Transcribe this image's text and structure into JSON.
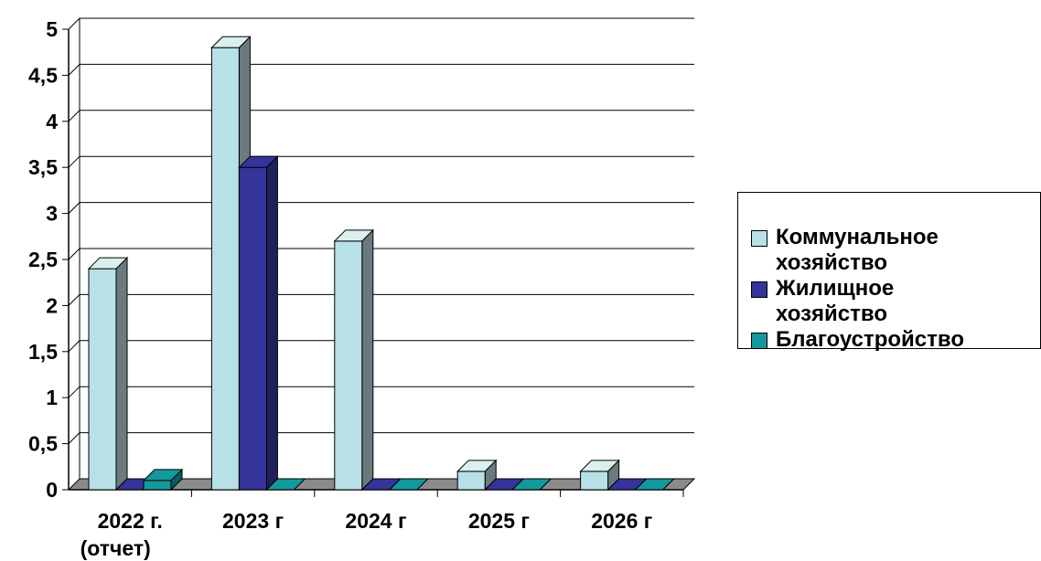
{
  "chart_data": {
    "type": "bar",
    "categories": [
      "2022 г.\n(отчет)",
      "2023 г",
      "2024 г",
      "2025 г",
      "2026 г"
    ],
    "series": [
      {
        "name": "Коммунальное\nхозяйство",
        "values": [
          2.4,
          4.8,
          2.7,
          0.2,
          0.2
        ],
        "color": "#b7e1e6"
      },
      {
        "name": "Жилищное\nхозяйство",
        "values": [
          0,
          3.5,
          0,
          0,
          0
        ],
        "color": "#34349a"
      },
      {
        "name": "Благоустройство",
        "values": [
          0.1,
          0,
          0,
          0,
          0
        ],
        "color": "#13999c"
      }
    ],
    "yticks": [
      "0",
      "0,5",
      "1",
      "1,5",
      "2",
      "2,5",
      "3",
      "3,5",
      "4",
      "4,5",
      "5"
    ],
    "ylim": [
      0,
      5
    ],
    "grid": true,
    "chart_style": "3d-column",
    "legend_position": "right"
  }
}
